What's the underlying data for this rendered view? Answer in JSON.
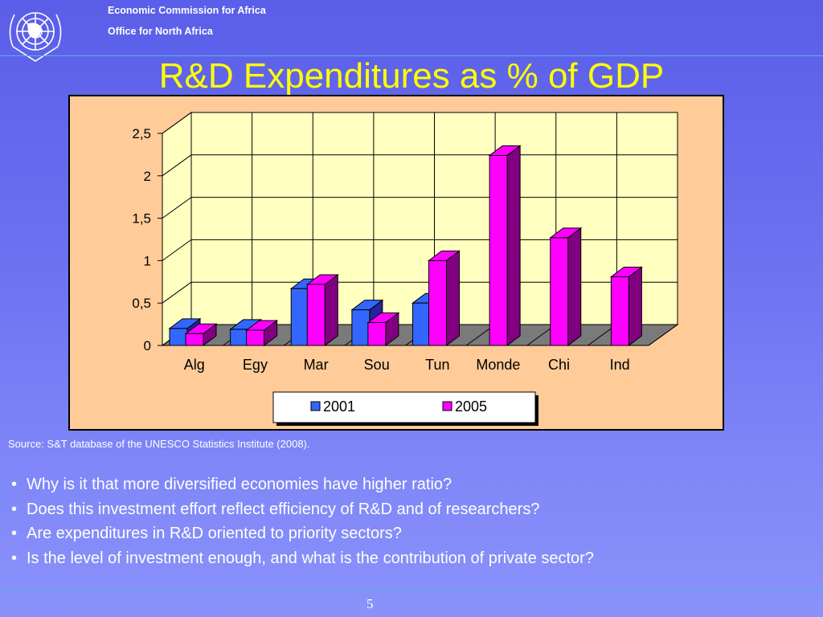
{
  "header": {
    "org_line_1": "Economic Commission for Africa",
    "org_line_2": "Office for North Africa",
    "logo": "un-emblem-icon"
  },
  "slide": {
    "title": "R&D Expenditures as % of GDP",
    "source": "Source: S&T database of the UNESCO Statistics Institute (2008).",
    "questions": [
      "Why is it that more diversified economies have higher ratio?",
      "Does this investment effort reflect efficiency of R&D and of researchers?",
      "Are expenditures in R&D oriented to priority sectors?",
      "Is the level of investment enough, and what is the contribution of private  sector?"
    ],
    "page_number": "5"
  },
  "colors": {
    "background": "#6b70f0",
    "title": "#ffff00",
    "chart_frame": "#ffcc99",
    "plot_area": "#ffffc0",
    "series_2001_front": "#3366ff",
    "series_2001_side": "#2424a0",
    "series_2005_front": "#ff00ff",
    "series_2005_side": "#800080"
  },
  "chart_data": {
    "type": "bar",
    "style": "3d-clustered-column",
    "title": "",
    "xlabel": "",
    "ylabel": "",
    "categories": [
      "Alg",
      "Egy",
      "Mar",
      "Sou",
      "Tun",
      "Monde",
      "Chi",
      "Ind"
    ],
    "series": [
      {
        "name": "2001",
        "values": [
          0.2,
          0.19,
          0.67,
          0.42,
          0.5,
          null,
          null,
          null
        ]
      },
      {
        "name": "2005",
        "values": [
          0.14,
          0.18,
          0.72,
          0.27,
          1.0,
          2.24,
          1.27,
          0.81
        ]
      }
    ],
    "ylim": [
      0,
      2.5
    ],
    "yticks": [
      0,
      0.5,
      1,
      1.5,
      2,
      2.5
    ],
    "ytick_labels": [
      "0",
      "0,5",
      "1",
      "1,5",
      "2",
      "2,5"
    ],
    "grid": true,
    "legend_position": "bottom"
  }
}
